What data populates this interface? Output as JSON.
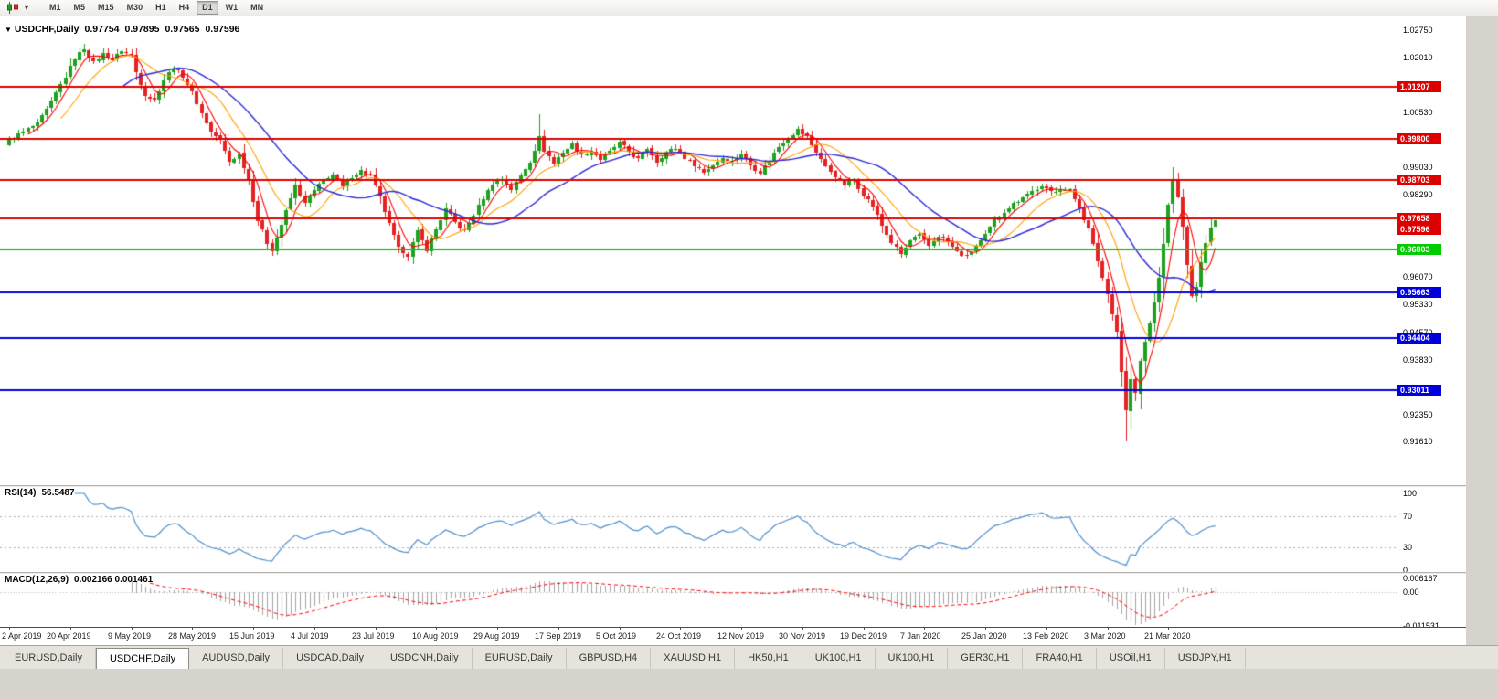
{
  "toolbar": {
    "chart_type_icon": "candlestick-chart-icon",
    "dropdown_icon": "chevron-down-icon",
    "timeframes": [
      {
        "label": "M1",
        "active": false
      },
      {
        "label": "M5",
        "active": false
      },
      {
        "label": "M15",
        "active": false
      },
      {
        "label": "M30",
        "active": false
      },
      {
        "label": "H1",
        "active": false
      },
      {
        "label": "H4",
        "active": false
      },
      {
        "label": "D1",
        "active": true
      },
      {
        "label": "W1",
        "active": false
      },
      {
        "label": "MN",
        "active": false
      }
    ]
  },
  "chart_header": {
    "dropdown_symbol": "▼",
    "symbol": "USDCHF,Daily",
    "open": "0.97754",
    "high": "0.97895",
    "low": "0.97565",
    "close": "0.97596"
  },
  "chart_data": {
    "type": "candlestick",
    "symbol": "USDCHF",
    "timeframe": "Daily",
    "up_color": "#1fa11f",
    "down_color": "#e32222",
    "price_axis": {
      "max": 1.0292,
      "min": 0.913,
      "ticks": [
        {
          "label": "1.02750",
          "value": 1.0275
        },
        {
          "label": "1.02010",
          "value": 1.0201
        },
        {
          "label": "1.00530",
          "value": 1.0053
        },
        {
          "label": "0.99030",
          "value": 0.9903
        },
        {
          "label": "0.98290",
          "value": 0.9829
        },
        {
          "label": "0.96070",
          "value": 0.9607
        },
        {
          "label": "0.95330",
          "value": 0.9533
        },
        {
          "label": "0.94570",
          "value": 0.9457
        },
        {
          "label": "0.93830",
          "value": 0.9383
        },
        {
          "label": "0.92350",
          "value": 0.9235
        },
        {
          "label": "0.91610",
          "value": 0.9161
        }
      ]
    },
    "bar_count": 258,
    "close_anchors": [
      [
        0,
        0.9975
      ],
      [
        3,
        1.0
      ],
      [
        6,
        1.002
      ],
      [
        9,
        1.008
      ],
      [
        12,
        1.015
      ],
      [
        14,
        1.02
      ],
      [
        16,
        1.0225
      ],
      [
        18,
        1.0185
      ],
      [
        20,
        1.021
      ],
      [
        22,
        1.0195
      ],
      [
        24,
        1.022
      ],
      [
        26,
        1.0205
      ],
      [
        27,
        1.016
      ],
      [
        29,
        1.01
      ],
      [
        31,
        1.0085
      ],
      [
        33,
        1.014
      ],
      [
        35,
        1.0175
      ],
      [
        37,
        1.015
      ],
      [
        39,
        1.0105
      ],
      [
        41,
        1.005
      ],
      [
        43,
        1.0
      ],
      [
        45,
        0.9975
      ],
      [
        47,
        0.992
      ],
      [
        49,
        0.994
      ],
      [
        51,
        0.987
      ],
      [
        53,
        0.976
      ],
      [
        55,
        0.97
      ],
      [
        56,
        0.968
      ],
      [
        58,
        0.975
      ],
      [
        60,
        0.982
      ],
      [
        61,
        0.9855
      ],
      [
        63,
        0.9805
      ],
      [
        65,
        0.984
      ],
      [
        67,
        0.987
      ],
      [
        69,
        0.9885
      ],
      [
        71,
        0.985
      ],
      [
        73,
        0.988
      ],
      [
        75,
        0.9895
      ],
      [
        77,
        0.988
      ],
      [
        79,
        0.982
      ],
      [
        81,
        0.975
      ],
      [
        83,
        0.9685
      ],
      [
        85,
        0.9665
      ],
      [
        87,
        0.973
      ],
      [
        89,
        0.968
      ],
      [
        91,
        0.9735
      ],
      [
        93,
        0.979
      ],
      [
        95,
        0.9755
      ],
      [
        97,
        0.973
      ],
      [
        99,
        0.9775
      ],
      [
        101,
        0.982
      ],
      [
        103,
        0.986
      ],
      [
        105,
        0.987
      ],
      [
        107,
        0.9845
      ],
      [
        109,
        0.988
      ],
      [
        111,
        0.992
      ],
      [
        113,
        0.9985
      ],
      [
        114,
        0.995
      ],
      [
        116,
        0.9915
      ],
      [
        118,
        0.9945
      ],
      [
        120,
        0.9965
      ],
      [
        122,
        0.9935
      ],
      [
        124,
        0.995
      ],
      [
        126,
        0.9925
      ],
      [
        128,
        0.9945
      ],
      [
        130,
        0.997
      ],
      [
        132,
        0.9945
      ],
      [
        134,
        0.9925
      ],
      [
        136,
        0.9955
      ],
      [
        138,
        0.992
      ],
      [
        140,
        0.9945
      ],
      [
        142,
        0.9955
      ],
      [
        144,
        0.993
      ],
      [
        146,
        0.991
      ],
      [
        148,
        0.989
      ],
      [
        150,
        0.991
      ],
      [
        152,
        0.993
      ],
      [
        154,
        0.992
      ],
      [
        156,
        0.994
      ],
      [
        158,
        0.991
      ],
      [
        160,
        0.989
      ],
      [
        162,
        0.9925
      ],
      [
        164,
        0.996
      ],
      [
        166,
        0.9985
      ],
      [
        168,
        1.0005
      ],
      [
        170,
        0.9985
      ],
      [
        172,
        0.9945
      ],
      [
        174,
        0.9905
      ],
      [
        176,
        0.988
      ],
      [
        178,
        0.9855
      ],
      [
        180,
        0.987
      ],
      [
        182,
        0.983
      ],
      [
        184,
        0.98
      ],
      [
        186,
        0.9745
      ],
      [
        188,
        0.97
      ],
      [
        190,
        0.9668
      ],
      [
        192,
        0.9705
      ],
      [
        194,
        0.972
      ],
      [
        196,
        0.969
      ],
      [
        198,
        0.972
      ],
      [
        200,
        0.97
      ],
      [
        202,
        0.9675
      ],
      [
        204,
        0.966
      ],
      [
        206,
        0.969
      ],
      [
        208,
        0.972
      ],
      [
        210,
        0.976
      ],
      [
        212,
        0.9785
      ],
      [
        214,
        0.9805
      ],
      [
        216,
        0.9825
      ],
      [
        218,
        0.984
      ],
      [
        220,
        0.985
      ],
      [
        222,
        0.9838
      ],
      [
        224,
        0.9846
      ],
      [
        226,
        0.984
      ],
      [
        228,
        0.9795
      ],
      [
        230,
        0.9735
      ],
      [
        232,
        0.965
      ],
      [
        234,
        0.956
      ],
      [
        236,
        0.946
      ],
      [
        238,
        0.9245
      ],
      [
        239,
        0.933
      ],
      [
        240,
        0.929
      ],
      [
        241,
        0.938
      ],
      [
        243,
        0.948
      ],
      [
        245,
        0.96
      ],
      [
        246,
        0.97
      ],
      [
        247,
        0.98
      ],
      [
        248,
        0.987
      ],
      [
        249,
        0.982
      ],
      [
        250,
        0.974
      ],
      [
        251,
        0.964
      ],
      [
        252,
        0.955
      ],
      [
        253,
        0.9585
      ],
      [
        254,
        0.965
      ],
      [
        255,
        0.97
      ],
      [
        256,
        0.974
      ],
      [
        257,
        0.97596
      ]
    ],
    "special_bars": [
      {
        "bar": 16,
        "high": 1.0238
      },
      {
        "bar": 113,
        "high": 1.0048
      },
      {
        "bar": 238,
        "low": 0.9161
      },
      {
        "bar": 248,
        "high": 0.9903
      }
    ],
    "moving_averages": [
      {
        "period": 5,
        "color": "#ff0000"
      },
      {
        "period": 12,
        "color": "#ffa000"
      },
      {
        "period": 25,
        "color": "#2929d6"
      }
    ],
    "levels": [
      {
        "value": 1.01207,
        "label": "1.01207",
        "color": "#dd0000"
      },
      {
        "value": 0.998,
        "label": "0.99800",
        "color": "#dd0000"
      },
      {
        "value": 0.98703,
        "label": "0.98703",
        "color": "#dd0000"
      },
      {
        "value": 0.97658,
        "label": "0.97658",
        "color": "#dd0000"
      },
      {
        "value": 0.96803,
        "label": "0.96803",
        "color": "#00cc00"
      },
      {
        "value": 0.95663,
        "label": "0.95663",
        "color": "#0000dd"
      },
      {
        "value": 0.94404,
        "label": "0.94404",
        "color": "#0000dd"
      },
      {
        "value": 0.93011,
        "label": "0.93011",
        "color": "#0000dd"
      }
    ],
    "bid_price": {
      "value": 0.97596,
      "label": "0.97596",
      "color": "#dd0000"
    }
  },
  "rsi_panel": {
    "title": "RSI(14)",
    "value": "56.5487",
    "period": 14,
    "line_color": "#4f8fce",
    "level_lines": [
      70,
      30
    ],
    "axis_ticks": [
      {
        "label": "100",
        "value": 100
      },
      {
        "label": "70",
        "value": 70
      },
      {
        "label": "30",
        "value": 30
      },
      {
        "label": "0",
        "value": 0
      }
    ]
  },
  "macd_panel": {
    "title": "MACD(12,26,9)",
    "values": "0.002166 0.001461",
    "fast": 12,
    "slow": 26,
    "signal": 9,
    "histogram_color": "#a3a3a3",
    "signal_color": "#ff0000",
    "axis_top_label": "0.006167",
    "axis_zero_label": "0.00",
    "axis_bottom_label": "-0.011531"
  },
  "date_axis": {
    "labels": [
      "2 Apr 2019",
      "20 Apr 2019",
      "9 May 2019",
      "28 May 2019",
      "15 Jun 2019",
      "4 Jul 2019",
      "23 Jul 2019",
      "10 Aug 2019",
      "29 Aug 2019",
      "17 Sep 2019",
      "5 Oct 2019",
      "24 Oct 2019",
      "12 Nov 2019",
      "30 Nov 2019",
      "19 Dec 2019",
      "7 Jan 2020",
      "25 Jan 2020",
      "13 Feb 2020",
      "3 Mar 2020",
      "21 Mar 2020"
    ]
  },
  "tabs": [
    {
      "label": "EURUSD,Daily",
      "active": false
    },
    {
      "label": "USDCHF,Daily",
      "active": true
    },
    {
      "label": "AUDUSD,Daily",
      "active": false
    },
    {
      "label": "USDCAD,Daily",
      "active": false
    },
    {
      "label": "USDCNH,Daily",
      "active": false
    },
    {
      "label": "EURUSD,Daily",
      "active": false
    },
    {
      "label": "GBPUSD,H4",
      "active": false
    },
    {
      "label": "XAUUSD,H1",
      "active": false
    },
    {
      "label": "HK50,H1",
      "active": false
    },
    {
      "label": "UK100,H1",
      "active": false
    },
    {
      "label": "UK100,H1",
      "active": false
    },
    {
      "label": "GER30,H1",
      "active": false
    },
    {
      "label": "FRA40,H1",
      "active": false
    },
    {
      "label": "USOil,H1",
      "active": false
    },
    {
      "label": "USDJPY,H1",
      "active": false
    }
  ],
  "theme": {
    "chart_background": "#ffffff",
    "chrome_background": "#d6d3cc",
    "axis_border": "#3d3d3d"
  }
}
